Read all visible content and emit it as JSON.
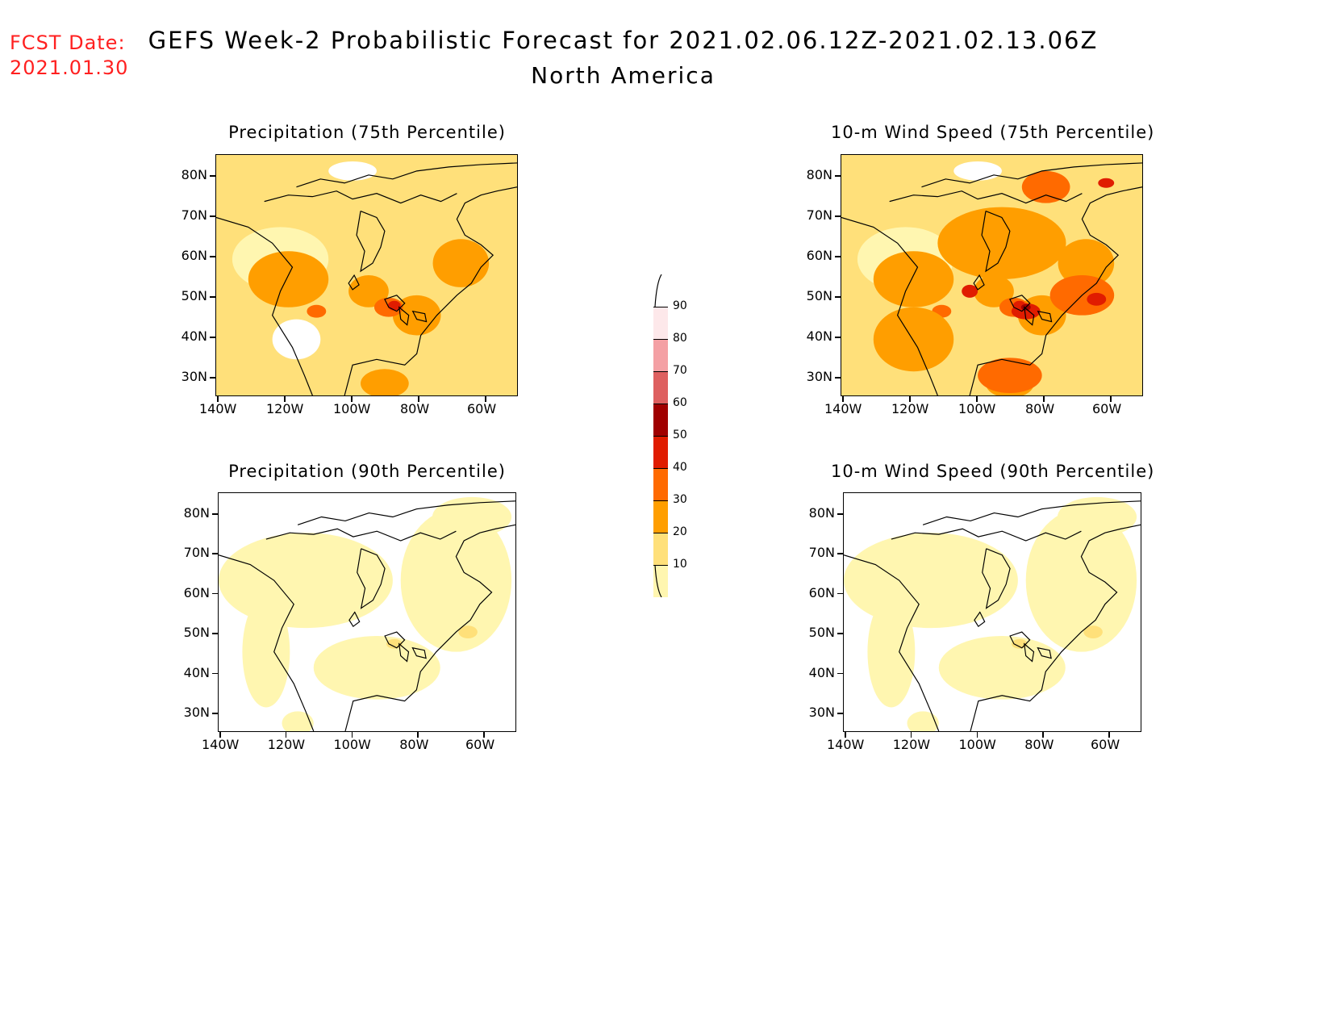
{
  "header": {
    "fcst_label": "FCST Date:",
    "fcst_date": "2021.01.30",
    "title": "GEFS Week-2 Probabilistic Forecast for 2021.02.06.12Z-2021.02.13.06Z",
    "subtitle": "North America"
  },
  "axes": {
    "lat_labels": [
      "80N",
      "70N",
      "60N",
      "50N",
      "40N",
      "30N"
    ],
    "lon_labels": [
      "140W",
      "120W",
      "100W",
      "80W",
      "60W"
    ]
  },
  "panels": [
    {
      "title": "Precipitation (75th Percentile)",
      "intensity": "high"
    },
    {
      "title": "10-m Wind Speed (75th Percentile)",
      "intensity": "veryhigh"
    },
    {
      "title": "Precipitation (90th Percentile)",
      "intensity": "low"
    },
    {
      "title": "10-m Wind Speed (90th Percentile)",
      "intensity": "low"
    }
  ],
  "colorbar": {
    "labels": [
      "90",
      "80",
      "70",
      "60",
      "50",
      "40",
      "30",
      "20",
      "10"
    ],
    "colors": [
      "#fde8ea",
      "#f4a0a4",
      "#de6060",
      "#a00000",
      "#e01c00",
      "#ff6a00",
      "#ff9e00",
      "#ffe07a",
      "#fff6b0"
    ]
  }
}
